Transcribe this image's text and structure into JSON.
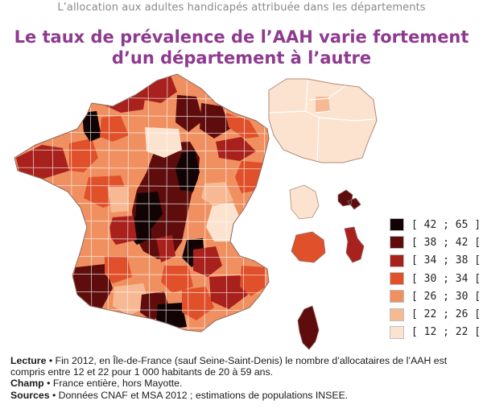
{
  "header": {
    "supertitle": "L’allocation aux adultes handicapés attribuée dans les départements",
    "title_line1": "Le taux de prévalence de l’AAH varie fortement",
    "title_line2": "d’un département à l’autre"
  },
  "map": {
    "regions": [
      "France métropolitaine",
      "Île-de-France",
      "Corse",
      "Guadeloupe",
      "Martinique",
      "Guyane",
      "La Réunion"
    ]
  },
  "legend": {
    "items": [
      {
        "label": "[ 42 ; 65 ]",
        "color": "#120404"
      },
      {
        "label": "[ 38 ; 42 [",
        "color": "#5e0c0c"
      },
      {
        "label": "[ 34 ; 38 [",
        "color": "#a8211c"
      },
      {
        "label": "[ 30 ; 34 [",
        "color": "#e0502a"
      },
      {
        "label": "[ 26 ; 30 [",
        "color": "#f09060"
      },
      {
        "label": "[ 22 ; 26 [",
        "color": "#f6b993"
      },
      {
        "label": "[ 12 ; 22 [",
        "color": "#fce3cf"
      }
    ]
  },
  "notes": {
    "lecture_label": "Lecture",
    "lecture_text": " • Fin 2012, en Île-de-France (sauf Seine-Saint-Denis) le nombre d’allocataires de l’AAH est compris entre 12 et 22 pour 1 000 habitants de 20 à 59 ans.",
    "champ_label": "Champ",
    "champ_text": " • France entière, hors Mayotte.",
    "sources_label": "Sources",
    "sources_text": " • Données CNAF et MSA 2012 ; estimations de populations INSEE."
  }
}
